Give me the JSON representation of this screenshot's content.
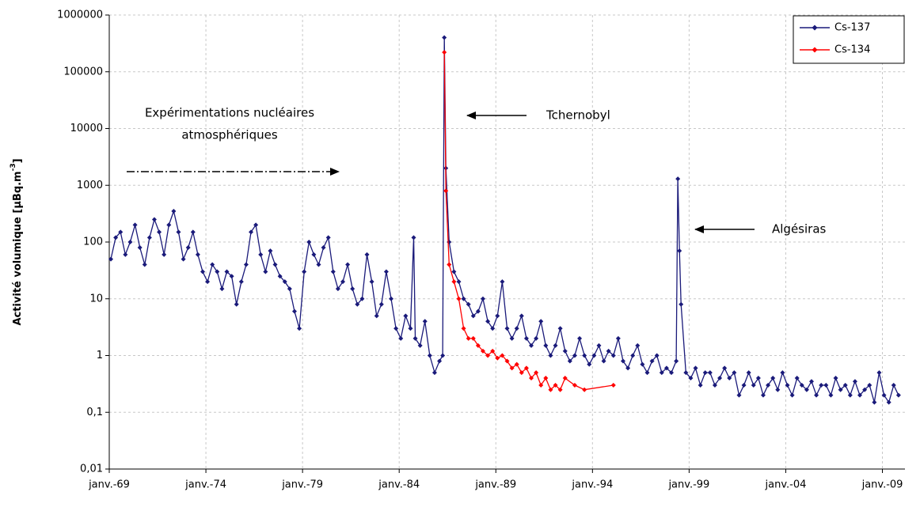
{
  "chart_data": {
    "type": "line",
    "ylabel": [
      "Activité volumique [µBq.m",
      "-3",
      "]"
    ],
    "log_y": true,
    "grid": true,
    "legend": "upper right",
    "ylim": [
      0.01,
      1000000
    ],
    "yticks": [
      {
        "value": 0.01,
        "label": "0,01"
      },
      {
        "value": 0.1,
        "label": "0,1"
      },
      1,
      10,
      100,
      1000,
      10000,
      100000,
      1000000
    ],
    "xlim": [
      "1969-01",
      "2010-03"
    ],
    "xticks": [
      {
        "value": "1969-01",
        "label": "janv.-69"
      },
      {
        "value": "1974-01",
        "label": "janv.-74"
      },
      {
        "value": "1979-01",
        "label": "janv.-79"
      },
      {
        "value": "1984-01",
        "label": "janv.-84"
      },
      {
        "value": "1989-01",
        "label": "janv.-89"
      },
      {
        "value": "1994-01",
        "label": "janv.-94"
      },
      {
        "value": "1999-01",
        "label": "janv.-99"
      },
      {
        "value": "2004-01",
        "label": "janv.-04"
      },
      {
        "value": "2009-01",
        "label": "janv.-09"
      }
    ],
    "annotations": {
      "tests": [
        "Expérimentations nucléaires",
        "atmosphériques"
      ],
      "chernobyl": "Tchernobyl",
      "algesiras": "Algésiras"
    },
    "series": [
      {
        "name": "Cs-137",
        "color": "#1a1a7a",
        "x": [
          "1969-02",
          "1969-05",
          "1969-08",
          "1969-11",
          "1970-02",
          "1970-05",
          "1970-08",
          "1970-11",
          "1971-02",
          "1971-05",
          "1971-08",
          "1971-11",
          "1972-02",
          "1972-05",
          "1972-08",
          "1972-11",
          "1973-02",
          "1973-05",
          "1973-08",
          "1973-11",
          "1974-02",
          "1974-05",
          "1974-08",
          "1974-11",
          "1975-02",
          "1975-05",
          "1975-08",
          "1975-11",
          "1976-02",
          "1976-05",
          "1976-08",
          "1976-11",
          "1977-02",
          "1977-05",
          "1977-08",
          "1977-11",
          "1978-02",
          "1978-05",
          "1978-08",
          "1978-11",
          "1979-02",
          "1979-05",
          "1979-08",
          "1979-11",
          "1980-02",
          "1980-05",
          "1980-08",
          "1980-11",
          "1981-02",
          "1981-05",
          "1981-08",
          "1981-11",
          "1982-02",
          "1982-05",
          "1982-08",
          "1982-11",
          "1983-02",
          "1983-05",
          "1983-08",
          "1983-11",
          "1984-02",
          "1984-05",
          "1984-08",
          "1984-10",
          "1984-11",
          "1985-02",
          "1985-05",
          "1985-08",
          "1985-11",
          "1986-02",
          "1986-04",
          "1986-05",
          "1986-06",
          "1986-08",
          "1986-11",
          "1987-02",
          "1987-05",
          "1987-08",
          "1987-11",
          "1988-02",
          "1988-05",
          "1988-08",
          "1988-11",
          "1989-02",
          "1989-05",
          "1989-08",
          "1989-11",
          "1990-02",
          "1990-05",
          "1990-08",
          "1990-11",
          "1991-02",
          "1991-05",
          "1991-08",
          "1991-11",
          "1992-02",
          "1992-05",
          "1992-08",
          "1992-11",
          "1993-02",
          "1993-05",
          "1993-08",
          "1993-11",
          "1994-02",
          "1994-05",
          "1994-08",
          "1994-11",
          "1995-02",
          "1995-05",
          "1995-08",
          "1995-11",
          "1996-02",
          "1996-05",
          "1996-08",
          "1996-11",
          "1997-02",
          "1997-05",
          "1997-08",
          "1997-11",
          "1998-02",
          "1998-05",
          "1998-06",
          "1998-07",
          "1998-08",
          "1998-11",
          "1999-02",
          "1999-05",
          "1999-08",
          "1999-11",
          "2000-02",
          "2000-05",
          "2000-08",
          "2000-11",
          "2001-02",
          "2001-05",
          "2001-08",
          "2001-11",
          "2002-02",
          "2002-05",
          "2002-08",
          "2002-11",
          "2003-02",
          "2003-05",
          "2003-08",
          "2003-11",
          "2004-02",
          "2004-05",
          "2004-08",
          "2004-11",
          "2005-02",
          "2005-05",
          "2005-08",
          "2005-11",
          "2006-02",
          "2006-05",
          "2006-08",
          "2006-11",
          "2007-02",
          "2007-05",
          "2007-08",
          "2007-11",
          "2008-02",
          "2008-05",
          "2008-08",
          "2008-11",
          "2009-02",
          "2009-05",
          "2009-08",
          "2009-11"
        ],
        "values": [
          50,
          120,
          150,
          60,
          100,
          200,
          80,
          40,
          120,
          250,
          150,
          60,
          200,
          350,
          150,
          50,
          80,
          150,
          60,
          30,
          20,
          40,
          30,
          15,
          30,
          25,
          8,
          20,
          40,
          150,
          200,
          60,
          30,
          70,
          40,
          25,
          20,
          15,
          6,
          3,
          30,
          100,
          60,
          40,
          80,
          120,
          30,
          15,
          20,
          40,
          15,
          8,
          10,
          60,
          20,
          5,
          8,
          30,
          10,
          3,
          2,
          5,
          3,
          120,
          2,
          1.5,
          4,
          1,
          0.5,
          0.8,
          1,
          400000,
          2000,
          100,
          30,
          20,
          10,
          8,
          5,
          6,
          10,
          4,
          3,
          5,
          20,
          3,
          2,
          3,
          5,
          2,
          1.5,
          2,
          4,
          1.5,
          1,
          1.5,
          3,
          1.2,
          0.8,
          1,
          2,
          1,
          0.7,
          1,
          1.5,
          0.8,
          1.2,
          1,
          2,
          0.8,
          0.6,
          1,
          1.5,
          0.7,
          0.5,
          0.8,
          1,
          0.5,
          0.6,
          0.5,
          0.8,
          1300,
          70,
          8,
          0.5,
          0.4,
          0.6,
          0.3,
          0.5,
          0.5,
          0.3,
          0.4,
          0.6,
          0.4,
          0.5,
          0.2,
          0.3,
          0.5,
          0.3,
          0.4,
          0.2,
          0.3,
          0.4,
          0.25,
          0.5,
          0.3,
          0.2,
          0.4,
          0.3,
          0.25,
          0.35,
          0.2,
          0.3,
          0.3,
          0.2,
          0.4,
          0.25,
          0.3,
          0.2,
          0.35,
          0.2,
          0.25,
          0.3,
          0.15,
          0.5,
          0.2,
          0.15,
          0.3,
          0.2
        ]
      },
      {
        "name": "Cs-134",
        "color": "#ff0000",
        "x": [
          "1986-05",
          "1986-06",
          "1986-08",
          "1986-11",
          "1987-02",
          "1987-05",
          "1987-08",
          "1987-11",
          "1988-02",
          "1988-05",
          "1988-08",
          "1988-11",
          "1989-02",
          "1989-05",
          "1989-08",
          "1989-11",
          "1990-02",
          "1990-05",
          "1990-08",
          "1990-11",
          "1991-02",
          "1991-05",
          "1991-08",
          "1991-11",
          "1992-02",
          "1992-05",
          "1992-08",
          "1993-02",
          "1993-08",
          "1995-02"
        ],
        "values": [
          220000,
          800,
          40,
          20,
          10,
          3,
          2,
          2,
          1.5,
          1.2,
          1,
          1.2,
          0.9,
          1,
          0.8,
          0.6,
          0.7,
          0.5,
          0.6,
          0.4,
          0.5,
          0.3,
          0.4,
          0.25,
          0.3,
          0.25,
          0.4,
          0.3,
          0.25,
          0.3
        ]
      }
    ]
  }
}
